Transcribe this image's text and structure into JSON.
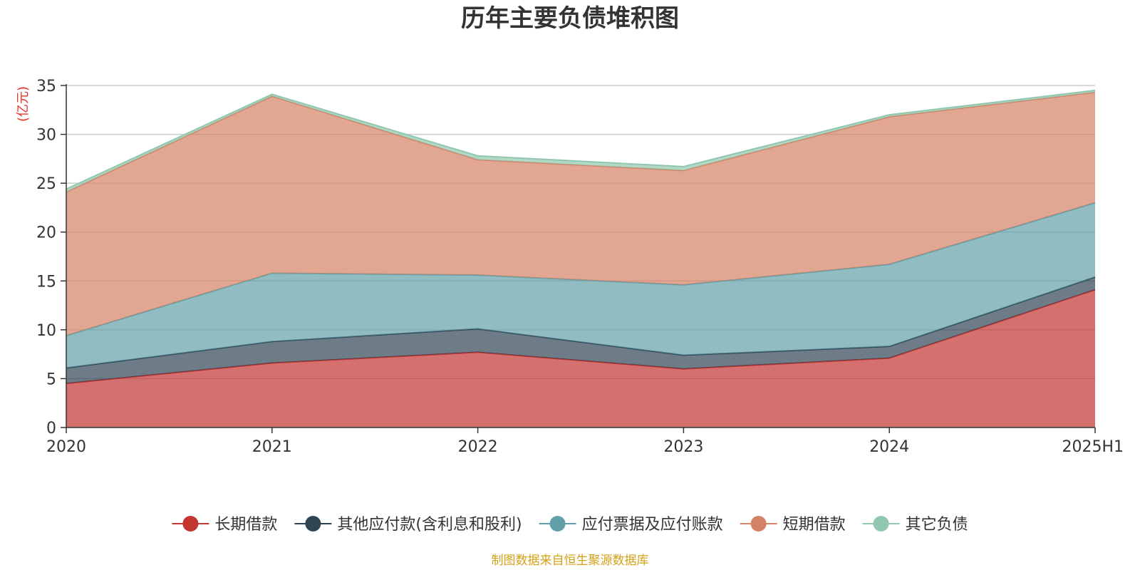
{
  "chart_data": {
    "type": "area",
    "stacked": true,
    "title": "历年主要负债堆积图",
    "unit_label": "(亿元)",
    "categories": [
      "2020",
      "2021",
      "2022",
      "2023",
      "2024",
      "2025H1"
    ],
    "ylim": [
      0,
      35
    ],
    "yticks": [
      0,
      5,
      10,
      15,
      20,
      25,
      30,
      35
    ],
    "grid": true,
    "legend_position": "bottom",
    "series": [
      {
        "name": "长期借款",
        "color": "#c23531",
        "values": [
          4.5,
          6.6,
          7.7,
          6.0,
          7.1,
          14.1
        ]
      },
      {
        "name": "其他应付款(含利息和股利)",
        "color": "#2f4554",
        "values": [
          1.6,
          2.2,
          2.4,
          1.4,
          1.2,
          1.3
        ]
      },
      {
        "name": "应付票据及应付账款",
        "color": "#61a0a8",
        "values": [
          3.3,
          7.0,
          5.5,
          7.2,
          8.4,
          7.6
        ]
      },
      {
        "name": "短期借款",
        "color": "#d48265",
        "values": [
          14.7,
          18.1,
          11.8,
          11.7,
          15.1,
          11.3
        ]
      },
      {
        "name": "其它负债",
        "color": "#91c7ae",
        "values": [
          0.3,
          0.2,
          0.4,
          0.4,
          0.2,
          0.2
        ]
      }
    ],
    "source_note": "制图数据来自恒生聚源数据库"
  }
}
